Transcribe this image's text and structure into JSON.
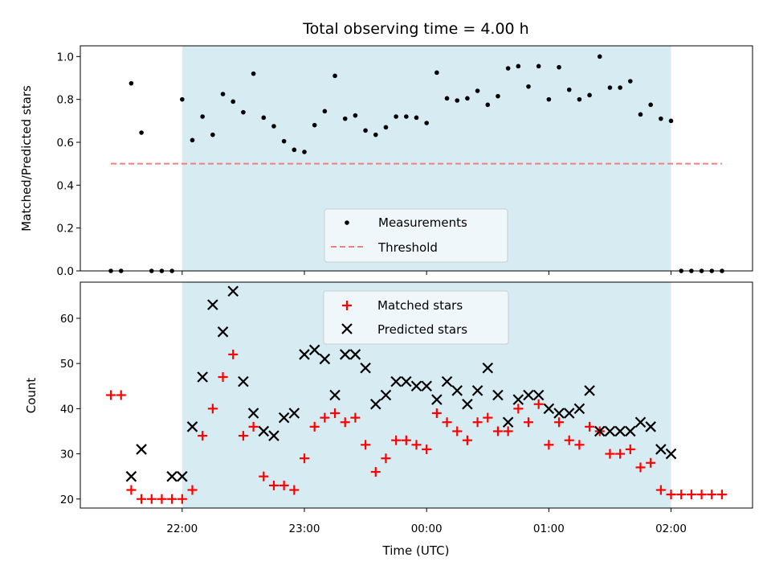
{
  "title": "Total observing time = 4.00 h",
  "colors": {
    "observing_span": "#add8e6",
    "measurement": "#000000",
    "threshold": "#f08080",
    "matched": "#ff0000",
    "predicted": "#000000"
  },
  "chart_data": [
    {
      "type": "scatter",
      "title": "Total observing time = 4.00 h",
      "ylabel": "Matched/Predicted stars",
      "xlabel": "",
      "xlim": [
        "21:10",
        "02:40"
      ],
      "ylim": [
        0,
        1.05
      ],
      "yticks": [
        "0.0",
        "0.2",
        "0.4",
        "0.6",
        "0.8",
        "1.0"
      ],
      "shaded_span": [
        "22:00",
        "02:00"
      ],
      "legend": {
        "location": "lower center",
        "entries": [
          "Measurements",
          "Threshold"
        ]
      },
      "threshold": {
        "name": "Threshold",
        "value": 0.5,
        "x_range": [
          "21:25",
          "02:25"
        ]
      },
      "series": [
        {
          "name": "Measurements",
          "marker": "dot",
          "points": [
            [
              "21:25",
              0.0
            ],
            [
              "21:30",
              0.0
            ],
            [
              "21:35",
              0.875
            ],
            [
              "21:40",
              0.645
            ],
            [
              "21:45",
              0.0
            ],
            [
              "21:50",
              0.0
            ],
            [
              "21:55",
              0.0
            ],
            [
              "22:00",
              0.8
            ],
            [
              "22:05",
              0.61
            ],
            [
              "22:10",
              0.72
            ],
            [
              "22:15",
              0.635
            ],
            [
              "22:20",
              0.825
            ],
            [
              "22:25",
              0.79
            ],
            [
              "22:30",
              0.74
            ],
            [
              "22:35",
              0.92
            ],
            [
              "22:40",
              0.715
            ],
            [
              "22:45",
              0.675
            ],
            [
              "22:50",
              0.605
            ],
            [
              "22:55",
              0.565
            ],
            [
              "23:00",
              0.555
            ],
            [
              "23:05",
              0.68
            ],
            [
              "23:10",
              0.745
            ],
            [
              "23:15",
              0.91
            ],
            [
              "23:20",
              0.71
            ],
            [
              "23:25",
              0.725
            ],
            [
              "23:30",
              0.655
            ],
            [
              "23:35",
              0.635
            ],
            [
              "23:40",
              0.67
            ],
            [
              "23:45",
              0.72
            ],
            [
              "23:50",
              0.72
            ],
            [
              "23:55",
              0.715
            ],
            [
              "00:00",
              0.69
            ],
            [
              "00:05",
              0.925
            ],
            [
              "00:10",
              0.805
            ],
            [
              "00:15",
              0.795
            ],
            [
              "00:20",
              0.805
            ],
            [
              "00:25",
              0.84
            ],
            [
              "00:30",
              0.775
            ],
            [
              "00:35",
              0.815
            ],
            [
              "00:40",
              0.945
            ],
            [
              "00:45",
              0.955
            ],
            [
              "00:50",
              0.86
            ],
            [
              "00:55",
              0.955
            ],
            [
              "01:00",
              0.8
            ],
            [
              "01:05",
              0.95
            ],
            [
              "01:10",
              0.845
            ],
            [
              "01:15",
              0.8
            ],
            [
              "01:20",
              0.82
            ],
            [
              "01:25",
              1.0
            ],
            [
              "01:30",
              0.855
            ],
            [
              "01:35",
              0.855
            ],
            [
              "01:40",
              0.885
            ],
            [
              "01:45",
              0.73
            ],
            [
              "01:50",
              0.775
            ],
            [
              "01:55",
              0.71
            ],
            [
              "02:00",
              0.7
            ],
            [
              "02:05",
              0.0
            ],
            [
              "02:10",
              0.0
            ],
            [
              "02:15",
              0.0
            ],
            [
              "02:20",
              0.0
            ],
            [
              "02:25",
              0.0
            ]
          ]
        }
      ]
    },
    {
      "type": "scatter",
      "title": "",
      "ylabel": "Count",
      "xlabel": "Time (UTC)",
      "xlim": [
        "21:10",
        "02:40"
      ],
      "ylim": [
        18,
        68
      ],
      "yticks": [
        "20",
        "30",
        "40",
        "50",
        "60"
      ],
      "xticks": [
        "22:00",
        "23:00",
        "00:00",
        "01:00",
        "02:00"
      ],
      "shaded_span": [
        "22:00",
        "02:00"
      ],
      "legend": {
        "location": "upper center",
        "entries": [
          "Matched stars",
          "Predicted stars"
        ]
      },
      "series": [
        {
          "name": "Matched stars",
          "marker": "plus",
          "points": [
            [
              "21:25",
              43
            ],
            [
              "21:30",
              43
            ],
            [
              "21:35",
              22
            ],
            [
              "21:40",
              20
            ],
            [
              "21:45",
              20
            ],
            [
              "21:50",
              20
            ],
            [
              "21:55",
              20
            ],
            [
              "22:00",
              20
            ],
            [
              "22:05",
              22
            ],
            [
              "22:10",
              34
            ],
            [
              "22:15",
              40
            ],
            [
              "22:20",
              47
            ],
            [
              "22:25",
              52
            ],
            [
              "22:30",
              34
            ],
            [
              "22:35",
              36
            ],
            [
              "22:40",
              25
            ],
            [
              "22:45",
              23
            ],
            [
              "22:50",
              23
            ],
            [
              "22:55",
              22
            ],
            [
              "23:00",
              29
            ],
            [
              "23:05",
              36
            ],
            [
              "23:10",
              38
            ],
            [
              "23:15",
              39
            ],
            [
              "23:20",
              37
            ],
            [
              "23:25",
              38
            ],
            [
              "23:30",
              32
            ],
            [
              "23:35",
              26
            ],
            [
              "23:40",
              29
            ],
            [
              "23:45",
              33
            ],
            [
              "23:50",
              33
            ],
            [
              "23:55",
              32
            ],
            [
              "00:00",
              31
            ],
            [
              "00:05",
              39
            ],
            [
              "00:10",
              37
            ],
            [
              "00:15",
              35
            ],
            [
              "00:20",
              33
            ],
            [
              "00:25",
              37
            ],
            [
              "00:30",
              38
            ],
            [
              "00:35",
              35
            ],
            [
              "00:40",
              35
            ],
            [
              "00:45",
              40
            ],
            [
              "00:50",
              37
            ],
            [
              "00:55",
              41
            ],
            [
              "01:00",
              32
            ],
            [
              "01:05",
              37
            ],
            [
              "01:10",
              33
            ],
            [
              "01:15",
              32
            ],
            [
              "01:20",
              36
            ],
            [
              "01:25",
              35
            ],
            [
              "01:30",
              30
            ],
            [
              "01:35",
              30
            ],
            [
              "01:40",
              31
            ],
            [
              "01:45",
              27
            ],
            [
              "01:50",
              28
            ],
            [
              "01:55",
              22
            ],
            [
              "02:00",
              21
            ],
            [
              "02:05",
              21
            ],
            [
              "02:10",
              21
            ],
            [
              "02:15",
              21
            ],
            [
              "02:20",
              21
            ],
            [
              "02:25",
              21
            ]
          ]
        },
        {
          "name": "Predicted stars",
          "marker": "x",
          "points": [
            [
              "21:35",
              25
            ],
            [
              "21:40",
              31
            ],
            [
              "21:55",
              25
            ],
            [
              "22:00",
              25
            ],
            [
              "22:05",
              36
            ],
            [
              "22:10",
              47
            ],
            [
              "22:15",
              63
            ],
            [
              "22:20",
              57
            ],
            [
              "22:25",
              66
            ],
            [
              "22:30",
              46
            ],
            [
              "22:35",
              39
            ],
            [
              "22:40",
              35
            ],
            [
              "22:45",
              34
            ],
            [
              "22:50",
              38
            ],
            [
              "22:55",
              39
            ],
            [
              "23:00",
              52
            ],
            [
              "23:05",
              53
            ],
            [
              "23:10",
              51
            ],
            [
              "23:15",
              43
            ],
            [
              "23:20",
              52
            ],
            [
              "23:25",
              52
            ],
            [
              "23:30",
              49
            ],
            [
              "23:35",
              41
            ],
            [
              "23:40",
              43
            ],
            [
              "23:45",
              46
            ],
            [
              "23:50",
              46
            ],
            [
              "23:55",
              45
            ],
            [
              "00:00",
              45
            ],
            [
              "00:05",
              42
            ],
            [
              "00:10",
              46
            ],
            [
              "00:15",
              44
            ],
            [
              "00:20",
              41
            ],
            [
              "00:25",
              44
            ],
            [
              "00:30",
              49
            ],
            [
              "00:35",
              43
            ],
            [
              "00:40",
              37
            ],
            [
              "00:45",
              42
            ],
            [
              "00:50",
              43
            ],
            [
              "00:55",
              43
            ],
            [
              "01:00",
              40
            ],
            [
              "01:05",
              39
            ],
            [
              "01:10",
              39
            ],
            [
              "01:15",
              40
            ],
            [
              "01:20",
              44
            ],
            [
              "01:25",
              35
            ],
            [
              "01:30",
              35
            ],
            [
              "01:35",
              35
            ],
            [
              "01:40",
              35
            ],
            [
              "01:45",
              37
            ],
            [
              "01:50",
              36
            ],
            [
              "01:55",
              31
            ],
            [
              "02:00",
              30
            ]
          ]
        }
      ]
    }
  ]
}
